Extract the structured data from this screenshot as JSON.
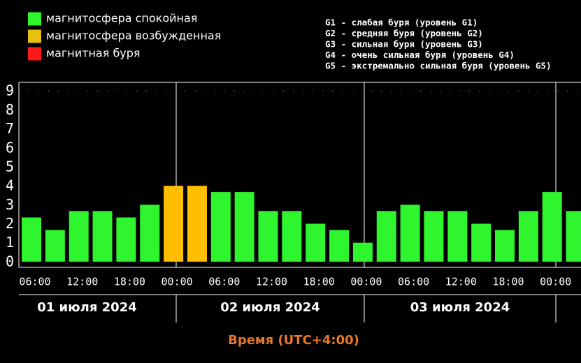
{
  "chart_data": {
    "type": "bar",
    "legend": [
      {
        "label": "магнитосфера спокойная",
        "color": "#2ef52e"
      },
      {
        "label": "магнитосфера возбужденная",
        "color": "#e8c010"
      },
      {
        "label": "магнитная буря",
        "color": "#ff1a1a"
      }
    ],
    "g_scale": [
      "G1 - слабая буря (уровень G1)",
      "G2 - средняя буря (уровень G2)",
      "G3 - сильная буря (уровень G3)",
      "G4 - очень сильная буря (уровень G4)",
      "G5 - экстремально сильная буря (уровень G5)"
    ],
    "categories": [
      "06:00",
      null,
      "12:00",
      null,
      "18:00",
      null,
      "00:00",
      null,
      "06:00",
      null,
      "12:00",
      null,
      "18:00",
      null,
      "00:00",
      null,
      "06:00",
      null,
      "12:00",
      null,
      "18:00",
      null,
      "00:00",
      null
    ],
    "values": [
      2.33,
      1.67,
      2.67,
      2.67,
      2.33,
      3,
      4,
      4,
      3.67,
      3.67,
      2.67,
      2.67,
      2,
      1.67,
      1,
      2.67,
      3,
      2.67,
      2.67,
      2,
      1.67,
      2.67,
      3.67,
      2.67
    ],
    "bar_colors": [
      "#2ef52e",
      "#2ef52e",
      "#2ef52e",
      "#2ef52e",
      "#2ef52e",
      "#2ef52e",
      "#ffbf00",
      "#ffbf00",
      "#2ef52e",
      "#2ef52e",
      "#2ef52e",
      "#2ef52e",
      "#2ef52e",
      "#2ef52e",
      "#2ef52e",
      "#2ef52e",
      "#2ef52e",
      "#2ef52e",
      "#2ef52e",
      "#2ef52e",
      "#2ef52e",
      "#2ef52e",
      "#2ef52e",
      "#2ef52e"
    ],
    "days": [
      "01 июля 2024",
      "02 июля 2024",
      "03 июля 2024"
    ],
    "x_label": "Время (UTC+4:00)",
    "x_label_color": "#e8782a",
    "ylim": [
      -0.3,
      9.45
    ],
    "yticks": [
      0,
      1,
      2,
      3,
      4,
      5,
      6,
      7,
      8,
      9
    ]
  }
}
